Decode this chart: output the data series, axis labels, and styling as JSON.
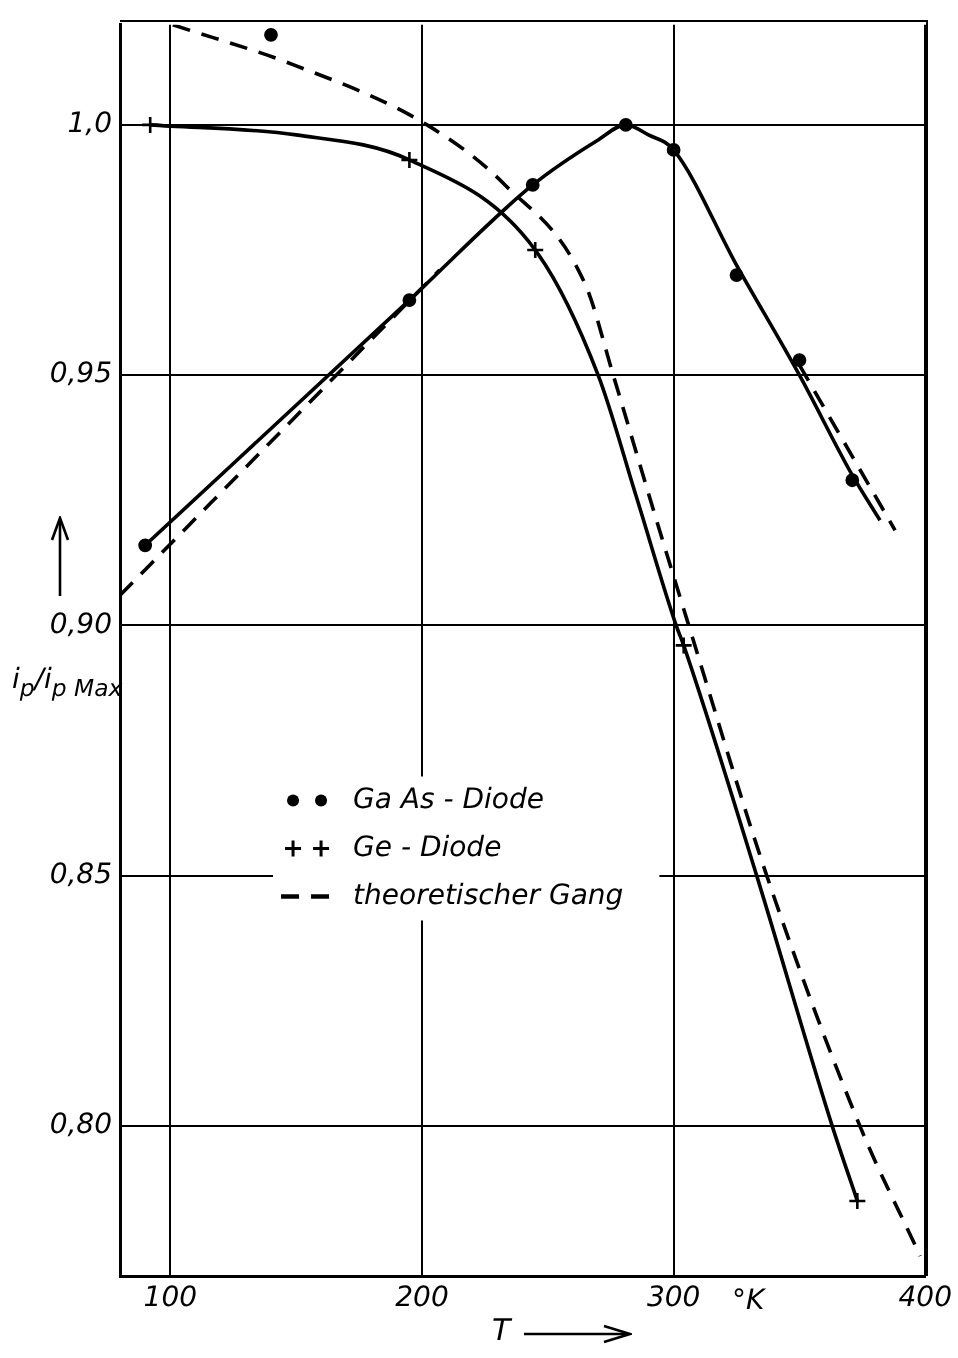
{
  "chart_data": {
    "type": "line",
    "xlabel": "T",
    "ylabel": "i$_{p}$/i$_{p Max}$",
    "annotations": [
      "°K"
    ],
    "xlim": [
      80,
      400
    ],
    "xticks": [
      100,
      200,
      300,
      400
    ],
    "ylim": [
      0.77,
      1.02
    ],
    "yticks": [
      {
        "value": 0.8,
        "label": "0,80"
      },
      {
        "value": 0.85,
        "label": "0,85"
      },
      {
        "value": 0.9,
        "label": "0,90"
      },
      {
        "value": 0.95,
        "label": "0,95"
      },
      {
        "value": 1.0,
        "label": "1,0"
      }
    ],
    "grid": true,
    "legend": "left",
    "series": [
      {
        "name": "Ga As - Diode",
        "type": "scatter",
        "marker": "circle",
        "color": "#000000",
        "x": [
          90,
          140,
          195,
          244,
          281,
          300,
          325,
          350,
          371
        ],
        "values": [
          0.916,
          1.018,
          0.965,
          0.988,
          1.0,
          0.995,
          0.97,
          0.953,
          0.929
        ]
      },
      {
        "color": "#000000",
        "x": [
          90,
          195,
          244,
          270,
          281,
          290,
          300,
          325,
          350,
          371,
          382
        ],
        "values": [
          0.916,
          0.965,
          0.988,
          0.997,
          1.0,
          0.998,
          0.995,
          0.972,
          0.95,
          0.93,
          0.921
        ]
      },
      {
        "name": "Ge - Diode",
        "type": "scatter",
        "marker": "cross",
        "color": "#000000",
        "x": [
          92,
          195,
          245,
          304,
          373
        ],
        "values": [
          1.0,
          0.993,
          0.975,
          0.896,
          0.785
        ]
      },
      {
        "color": "#000000",
        "x": [
          92,
          150,
          195,
          245,
          270,
          285,
          301,
          304,
          333,
          363,
          373
        ],
        "values": [
          1.0,
          0.998,
          0.993,
          0.975,
          0.95,
          0.926,
          0.9,
          0.896,
          0.85,
          0.8,
          0.785
        ]
      },
      {
        "name": "theoretischer Gang",
        "line_style": "dashed",
        "color": "#000000",
        "x": [
          101,
          149,
          202,
          233,
          265,
          276,
          292,
          306,
          337,
          374,
          398
        ],
        "values": [
          1.02,
          1.012,
          1.0,
          0.988,
          0.968,
          0.95,
          0.923,
          0.9,
          0.85,
          0.8,
          0.774
        ]
      },
      {
        "line_style": "dashed",
        "color": "#000000",
        "x": [
          80,
          207,
          300,
          350,
          388
        ],
        "values": [
          0.906,
          0.971,
          null,
          0.952,
          0.919
        ]
      }
    ]
  }
}
